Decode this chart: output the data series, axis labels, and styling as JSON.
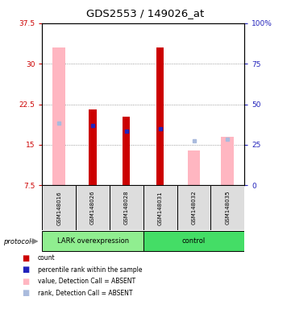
{
  "title": "GDS2553 / 149026_at",
  "samples": [
    "GSM148016",
    "GSM148026",
    "GSM148028",
    "GSM148031",
    "GSM148032",
    "GSM148035"
  ],
  "ylim_left": [
    7.5,
    37.5
  ],
  "ylim_right": [
    0,
    100
  ],
  "yticks_left": [
    7.5,
    15.0,
    22.5,
    30.0,
    37.5
  ],
  "ytick_labels_left": [
    "7.5",
    "15",
    "22.5",
    "30",
    "37.5"
  ],
  "yticks_right": [
    0,
    25,
    50,
    75,
    100
  ],
  "ytick_labels_right": [
    "0",
    "25",
    "50",
    "75",
    "100%"
  ],
  "red_bars_top": [
    null,
    21.5,
    20.2,
    33.0,
    null,
    null
  ],
  "pink_bars_top": [
    33.0,
    null,
    null,
    null,
    14.0,
    16.5
  ],
  "bar_bottom": 7.5,
  "blue_sq_y": [
    null,
    18.5,
    17.5,
    18.0,
    null,
    null
  ],
  "lightblue_sq_y": [
    19.0,
    null,
    null,
    null,
    15.8,
    16.0
  ],
  "red_bar_color": "#CC0000",
  "pink_bar_color": "#FFB6C1",
  "blue_color": "#2222BB",
  "lightblue_color": "#AABBDD",
  "left_axis_color": "#CC0000",
  "right_axis_color": "#2222BB",
  "sample_box_color": "#DDDDDD",
  "lark_group_color": "#90EE90",
  "control_group_color": "#44DD66",
  "legend_items": [
    {
      "label": "count",
      "color": "#CC0000"
    },
    {
      "label": "percentile rank within the sample",
      "color": "#2222BB"
    },
    {
      "label": "value, Detection Call = ABSENT",
      "color": "#FFB6C1"
    },
    {
      "label": "rank, Detection Call = ABSENT",
      "color": "#AABBDD"
    }
  ]
}
